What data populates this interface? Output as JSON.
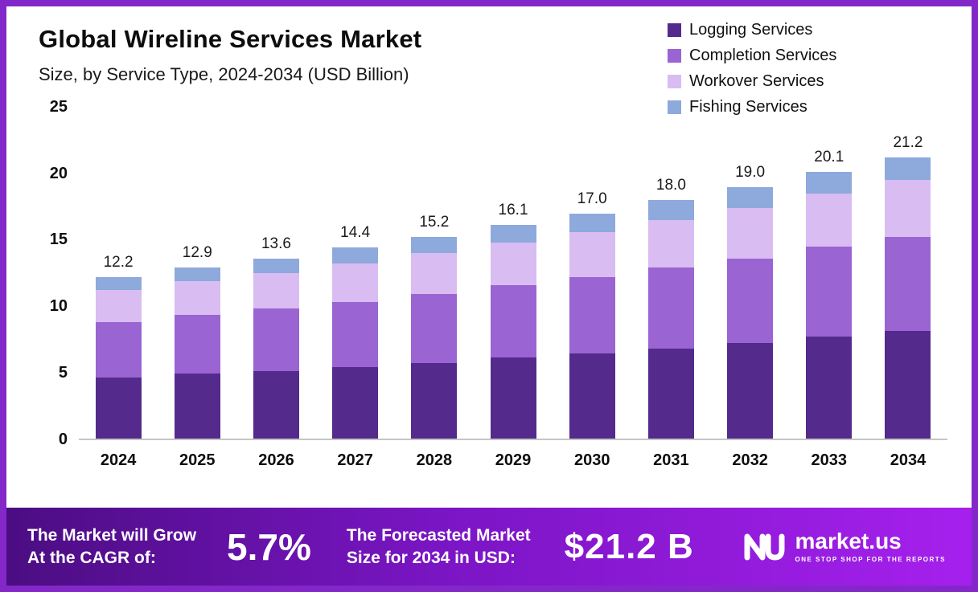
{
  "header": {
    "title": "Global Wireline Services Market",
    "subtitle": "Size, by Service Type, 2024-2034 (USD Billion)"
  },
  "chart_data": {
    "type": "bar",
    "stacked": true,
    "title": "Global Wireline Services Market",
    "subtitle": "Size, by Service Type, 2024-2034 (USD Billion)",
    "categories": [
      "2024",
      "2025",
      "2026",
      "2027",
      "2028",
      "2029",
      "2030",
      "2031",
      "2032",
      "2033",
      "2034"
    ],
    "series": [
      {
        "name": "Logging Services",
        "color": "#542a8c",
        "values": [
          4.6,
          4.9,
          5.1,
          5.4,
          5.7,
          6.1,
          6.4,
          6.8,
          7.2,
          7.7,
          8.1
        ]
      },
      {
        "name": "Completion Services",
        "color": "#9a64d2",
        "values": [
          4.2,
          4.4,
          4.7,
          4.9,
          5.2,
          5.5,
          5.8,
          6.1,
          6.4,
          6.8,
          7.1
        ]
      },
      {
        "name": "Workover Services",
        "color": "#d9bcf2",
        "values": [
          2.4,
          2.6,
          2.7,
          2.9,
          3.1,
          3.2,
          3.4,
          3.6,
          3.8,
          4.0,
          4.3
        ]
      },
      {
        "name": "Fishing Services",
        "color": "#8ea9db",
        "values": [
          1.0,
          1.0,
          1.1,
          1.2,
          1.2,
          1.3,
          1.4,
          1.5,
          1.6,
          1.6,
          1.7
        ]
      }
    ],
    "totals": [
      "12.2",
      "12.9",
      "13.6",
      "14.4",
      "15.2",
      "16.1",
      "17.0",
      "18.0",
      "19.0",
      "20.1",
      "21.2"
    ],
    "xlabel": "",
    "ylabel": "",
    "ylim": [
      0,
      25
    ],
    "yticks": [
      0,
      5,
      10,
      15,
      20,
      25
    ],
    "grid": false,
    "legend_position": "top-right"
  },
  "banner": {
    "cagr_label_line1": "The Market will Grow",
    "cagr_label_line2": "At the CAGR of:",
    "cagr_value": "5.7%",
    "forecast_label_line1": "The Forecasted Market",
    "forecast_label_line2": "Size for 2034 in USD:",
    "forecast_value": "$21.2 B",
    "brand": "market.us",
    "brand_tagline": "ONE STOP SHOP FOR THE REPORTS"
  },
  "colors": {
    "frame_border": "#8427c9",
    "banner_gradient_start": "#4b0d82",
    "banner_gradient_end": "#a620ed",
    "axis_line": "#c6c6c6"
  }
}
